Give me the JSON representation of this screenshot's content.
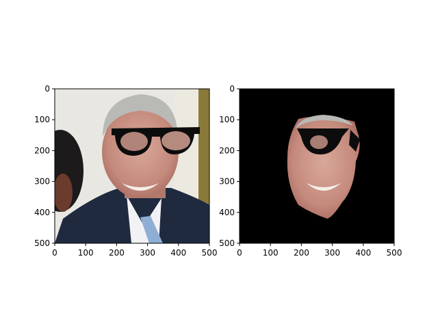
{
  "chart_data": [
    {
      "type": "image",
      "panel": "left",
      "description_visible": "photograph of a smiling man in a suit with a cartoon pair of black glasses drawn over his eyes",
      "xlim": [
        0,
        500
      ],
      "ylim": [
        500,
        0
      ],
      "xticks": [
        0,
        100,
        200,
        300,
        400,
        500
      ],
      "yticks": [
        0,
        100,
        200,
        300,
        400,
        500
      ],
      "xtick_labels": [
        "0",
        "100",
        "200",
        "300",
        "400",
        "500"
      ],
      "ytick_labels": [
        "0",
        "100",
        "200",
        "300",
        "400",
        "500"
      ],
      "background_color": "#e9e7e2",
      "title": "",
      "xlabel": "",
      "ylabel": ""
    },
    {
      "type": "image",
      "panel": "right",
      "description_visible": "same face isolated on a black background with partial glasses overlay",
      "xlim": [
        0,
        500
      ],
      "ylim": [
        500,
        0
      ],
      "xticks": [
        0,
        100,
        200,
        300,
        400,
        500
      ],
      "yticks": [
        0,
        100,
        200,
        300,
        400,
        500
      ],
      "xtick_labels": [
        "0",
        "100",
        "200",
        "300",
        "400",
        "500"
      ],
      "ytick_labels": [
        "0",
        "100",
        "200",
        "300",
        "400",
        "500"
      ],
      "background_color": "#000000",
      "title": "",
      "xlabel": "",
      "ylabel": ""
    }
  ]
}
